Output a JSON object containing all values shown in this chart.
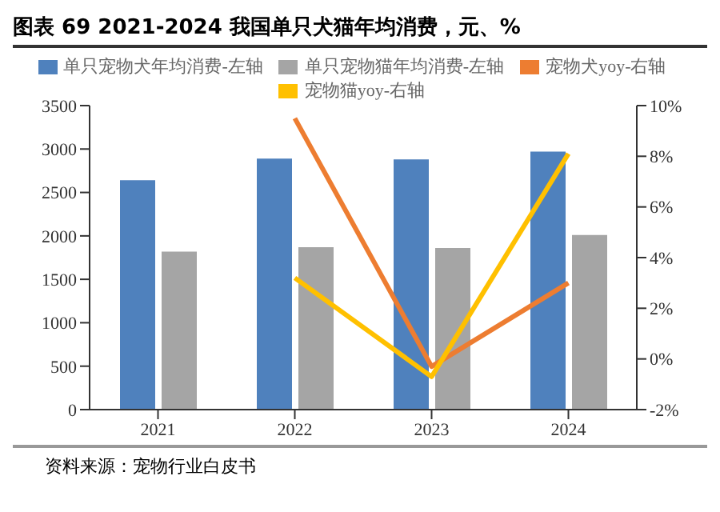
{
  "chart_data": {
    "type": "bar",
    "title": "图表 69 2021-2024 我国单只犬猫年均消费，元、%",
    "categories": [
      "2021",
      "2022",
      "2023",
      "2024"
    ],
    "series": [
      {
        "name": "单只宠物犬年均消费-左轴",
        "color": "#4f81bd",
        "values": [
          2640,
          2890,
          2880,
          2970
        ]
      },
      {
        "name": "单只宠物猫年均消费-左轴",
        "color": "#a5a5a5",
        "values": [
          1820,
          1870,
          1860,
          2010
        ]
      },
      {
        "name": "宠物犬yoy-右轴",
        "type": "line",
        "axis": "y2",
        "color": "#ed7d31",
        "values": [
          null,
          9.5,
          -0.3,
          3.0
        ]
      },
      {
        "name": "宠物猫yoy-右轴",
        "type": "line",
        "axis": "y2",
        "color": "#ffc000",
        "values": [
          null,
          3.2,
          -0.7,
          8.1
        ]
      }
    ],
    "ylim": [
      0,
      3500
    ],
    "yticks": [
      0,
      500,
      1000,
      1500,
      2000,
      2500,
      3000,
      3500
    ],
    "y2lim": [
      -2,
      10
    ],
    "y2ticks": [
      {
        "value": -2,
        "label": "-2%"
      },
      {
        "value": 0,
        "label": "0%"
      },
      {
        "value": 2,
        "label": "2%"
      },
      {
        "value": 4,
        "label": "4%"
      },
      {
        "value": 6,
        "label": "6%"
      },
      {
        "value": 8,
        "label": "8%"
      },
      {
        "value": 10,
        "label": "10%"
      }
    ],
    "legend": "top",
    "marker": "none",
    "annotations": [
      "资料来源：宠物行业白皮书"
    ]
  }
}
